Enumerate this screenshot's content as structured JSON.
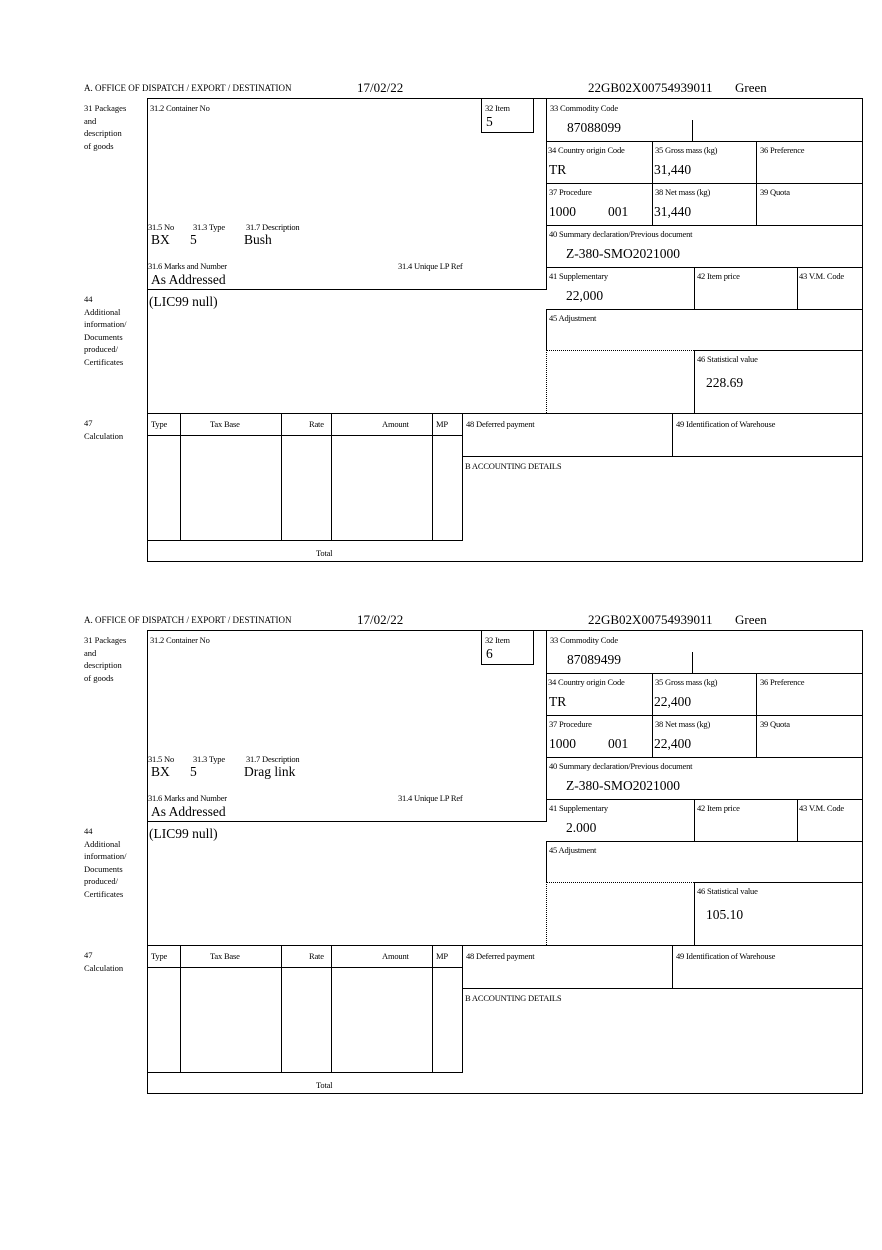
{
  "forms": [
    {
      "header": {
        "office": "A. OFFICE OF DISPATCH / EXPORT / DESTINATION",
        "date": "17/02/22",
        "reference": "22GB02X00754939011",
        "status": "Green"
      },
      "side_labels": {
        "packages": [
          "31 Packages",
          "and",
          "description",
          "of goods"
        ],
        "additional": [
          "44",
          "Additional",
          "information/",
          "Documents",
          "produced/",
          "Certificates"
        ],
        "calculation": [
          "47",
          "Calculation"
        ]
      },
      "labels": {
        "container_no": "31.2 Container No",
        "item": "32 Item",
        "no": "31.5 No",
        "type": "31.3 Type",
        "description": "31.7 Description",
        "marks": "31.6 Marks and Number",
        "unique_lp_ref": "31.4 Unique LP Ref",
        "commodity_code": "33 Commodity Code",
        "country_origin": "34 Country origin Code",
        "gross_mass": "35 Gross mass (kg)",
        "preference": "36 Preference",
        "procedure": "37 Procedure",
        "net_mass": "38 Net mass (kg)",
        "quota": "39 Quota",
        "summary_declaration": "40 Summary declaration/Previous document",
        "supplementary": "41 Supplementary",
        "item_price": "42 Item price",
        "vm_code": "43 V.M. Code",
        "adjustment": "45 Adjustment",
        "statistical_value": "46 Statistical value",
        "deferred_payment": "48 Deferred payment",
        "warehouse": "49 Identification of Warehouse",
        "accounting": "B ACCOUNTING DETAILS",
        "total": "Total"
      },
      "calc_headers": [
        "Type",
        "Tax Base",
        "Rate",
        "Amount",
        "MP"
      ],
      "values": {
        "item": "5",
        "no": "BX",
        "type": "5",
        "description": "Bush",
        "marks": "As Addressed",
        "additional_info": "(LIC99 null)",
        "commodity_code": "87088099",
        "country_origin": "TR",
        "gross_mass": "31,440",
        "procedure": "1000",
        "procedure_extra": "001",
        "net_mass": "31,440",
        "summary_declaration": "Z-380-SMO2021000",
        "supplementary": "22,000",
        "statistical_value": "228.69"
      }
    },
    {
      "header": {
        "office": "A. OFFICE OF DISPATCH / EXPORT / DESTINATION",
        "date": "17/02/22",
        "reference": "22GB02X00754939011",
        "status": "Green"
      },
      "side_labels": {
        "packages": [
          "31 Packages",
          "and",
          "description",
          "of goods"
        ],
        "additional": [
          "44",
          "Additional",
          "information/",
          "Documents",
          "produced/",
          "Certificates"
        ],
        "calculation": [
          "47",
          "Calculation"
        ]
      },
      "labels": {
        "container_no": "31.2 Container No",
        "item": "32 Item",
        "no": "31.5 No",
        "type": "31.3 Type",
        "description": "31.7 Description",
        "marks": "31.6 Marks and Number",
        "unique_lp_ref": "31.4 Unique LP Ref",
        "commodity_code": "33 Commodity Code",
        "country_origin": "34 Country origin Code",
        "gross_mass": "35 Gross mass (kg)",
        "preference": "36 Preference",
        "procedure": "37 Procedure",
        "net_mass": "38 Net mass (kg)",
        "quota": "39 Quota",
        "summary_declaration": "40 Summary declaration/Previous document",
        "supplementary": "41 Supplementary",
        "item_price": "42 Item price",
        "vm_code": "43 V.M. Code",
        "adjustment": "45 Adjustment",
        "statistical_value": "46 Statistical value",
        "deferred_payment": "48 Deferred payment",
        "warehouse": "49 Identification of Warehouse",
        "accounting": "B ACCOUNTING DETAILS",
        "total": "Total"
      },
      "calc_headers": [
        "Type",
        "Tax Base",
        "Rate",
        "Amount",
        "MP"
      ],
      "values": {
        "item": "6",
        "no": "BX",
        "type": "5",
        "description": "Drag link",
        "marks": "As Addressed",
        "additional_info": "(LIC99 null)",
        "commodity_code": "87089499",
        "country_origin": "TR",
        "gross_mass": "22,400",
        "procedure": "1000",
        "procedure_extra": "001",
        "net_mass": "22,400",
        "summary_declaration": "Z-380-SMO2021000",
        "supplementary": "2.000",
        "statistical_value": "105.10"
      }
    }
  ]
}
